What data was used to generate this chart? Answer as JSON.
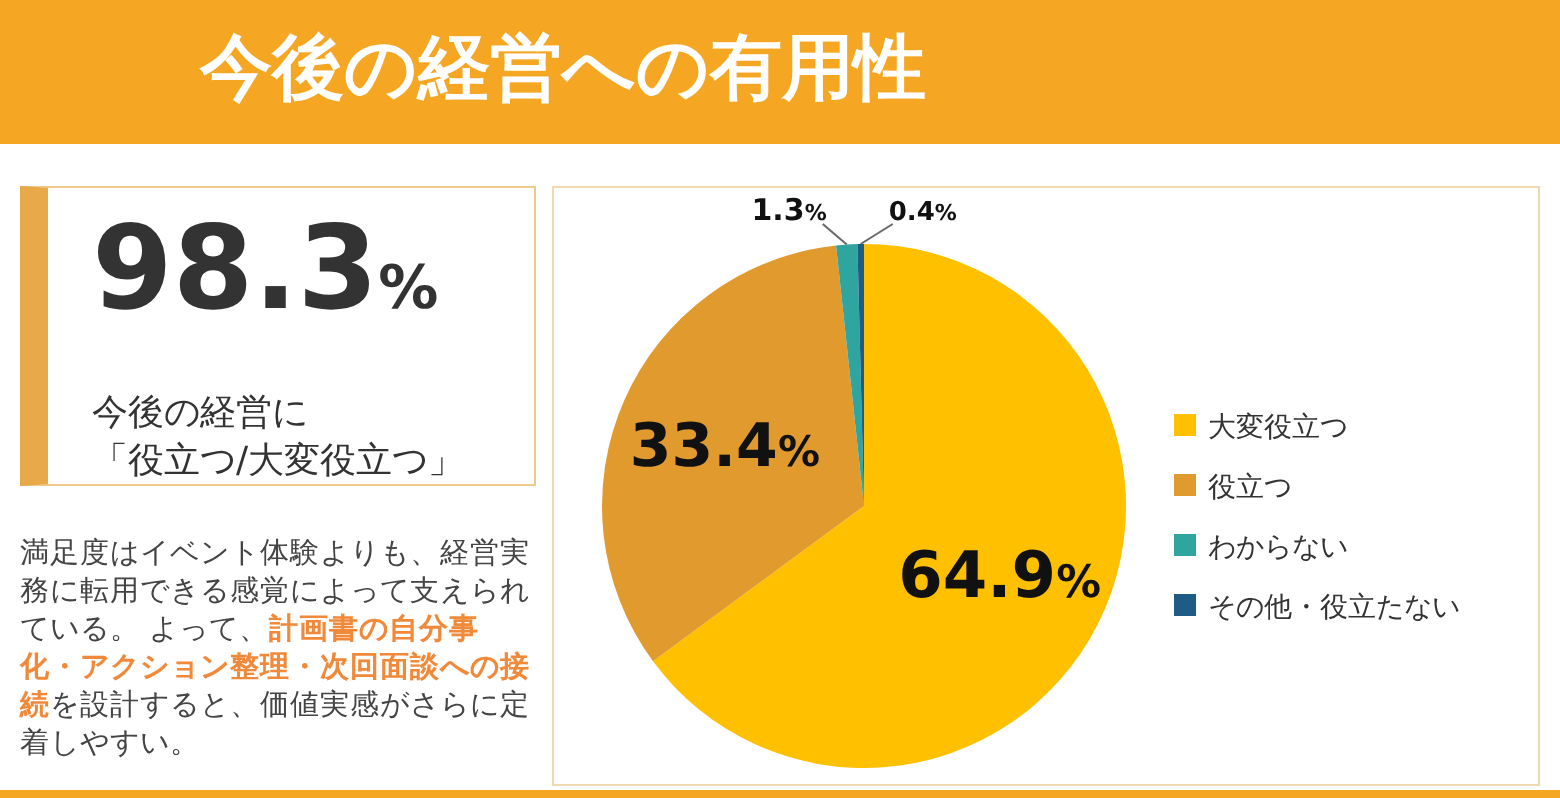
{
  "chart_data": {
    "type": "pie",
    "title": "今後の経営への有用性",
    "categories": [
      "大変役立つ",
      "役立つ",
      "わからない",
      "その他・役立たない"
    ],
    "values": [
      64.9,
      33.4,
      1.3,
      0.4
    ],
    "colors": [
      "#ffc000",
      "#e09a2e",
      "#2fa5a0",
      "#1f5c85"
    ],
    "value_labels": [
      "64.9%",
      "33.4%",
      "1.3%",
      "0.4%"
    ],
    "legend": "right",
    "annotations": [
      "98.3%",
      "今後の経営に",
      "「役立つ/大変役立つ」",
      "満足度はイベント体験よりも、経営実務に転用できる感覚によって支えられている。 よって、**計画書の自分事化・アクション整理・次回面談への接続**を設計すると、価値実感がさらに定着しやすい。"
    ]
  }
}
